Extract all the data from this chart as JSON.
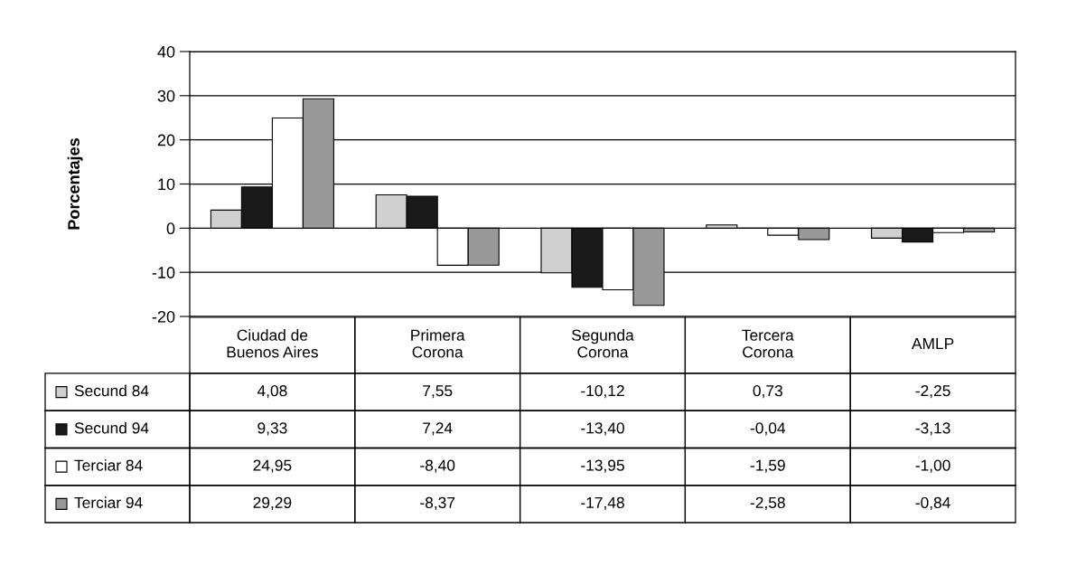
{
  "chart_data": {
    "type": "bar",
    "ylabel": "Porcentajes",
    "categories": [
      "Ciudad de\nBuenos Aires",
      "Primera\nCorona",
      "Segunda\nCorona",
      "Tercera\nCorona",
      "AMLP"
    ],
    "series": [
      {
        "name": "Secund 84",
        "color": "#d0d0d0",
        "values": [
          4.08,
          7.55,
          -10.12,
          0.73,
          -2.25
        ],
        "value_labels": [
          "4,08",
          "7,55",
          "-10,12",
          "0,73",
          "-2,25"
        ]
      },
      {
        "name": "Secund 94",
        "color": "#1a1a1a",
        "values": [
          9.33,
          7.24,
          -13.4,
          -0.04,
          -3.13
        ],
        "value_labels": [
          "9,33",
          "7,24",
          "-13,40",
          "-0,04",
          "-3,13"
        ]
      },
      {
        "name": "Terciar 84",
        "color": "#ffffff",
        "values": [
          24.95,
          -8.4,
          -13.95,
          -1.59,
          -1.0
        ],
        "value_labels": [
          "24,95",
          "-8,40",
          "-13,95",
          "-1,59",
          "-1,00"
        ]
      },
      {
        "name": "Terciar 94",
        "color": "#999999",
        "values": [
          29.29,
          -8.37,
          -17.48,
          -2.58,
          -0.84
        ],
        "value_labels": [
          "29,29",
          "-8,37",
          "-17,48",
          "-2,58",
          "-0,84"
        ]
      }
    ],
    "ylim": [
      -20,
      40
    ],
    "yticks": [
      -20,
      -10,
      0,
      10,
      20,
      30,
      40
    ],
    "grid": "y",
    "legend": "bottom left",
    "tick_labels": "y"
  }
}
